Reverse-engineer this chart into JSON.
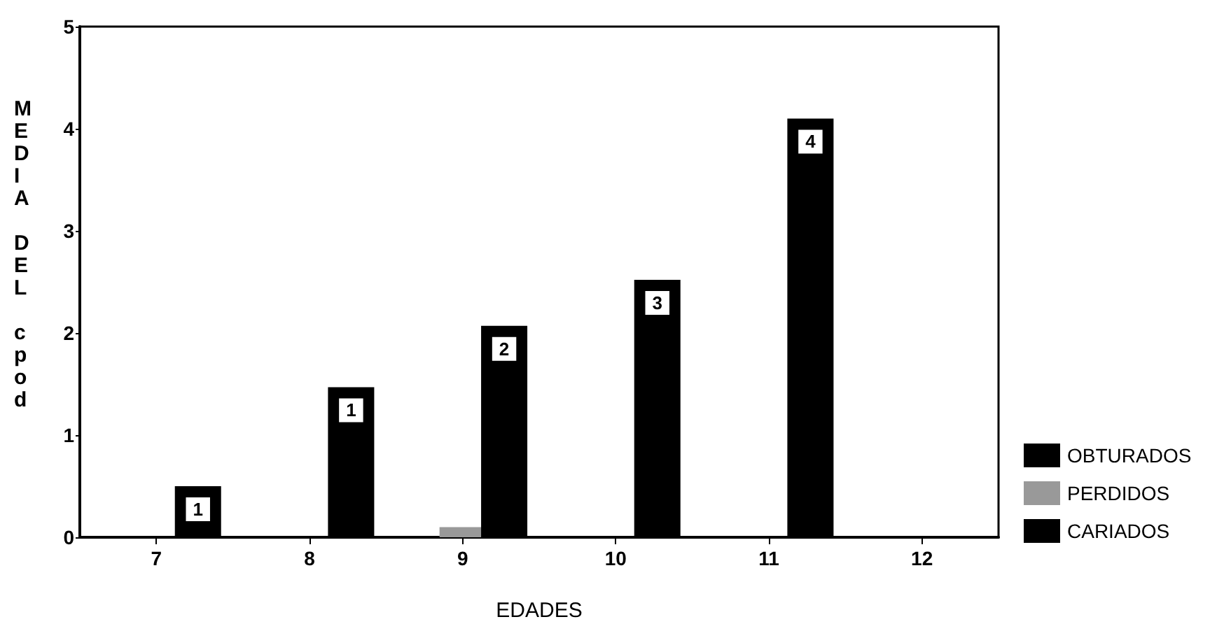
{
  "chart_data": {
    "type": "bar",
    "xlabel": "EDADES",
    "ylabel": "MEDIA DEL cpod",
    "categories": [
      "7",
      "8",
      "9",
      "10",
      "11",
      "12"
    ],
    "series": [
      {
        "name": "OBTURADOS",
        "color": "#000000",
        "values": [
          0,
          0,
          0,
          0,
          0,
          0
        ]
      },
      {
        "name": "PERDIDOS",
        "color": "#999999",
        "values": [
          0,
          0,
          0.1,
          0,
          0,
          0
        ]
      },
      {
        "name": "CARIADOS",
        "color": "#000000",
        "values": [
          0.5,
          1.47,
          2.07,
          2.52,
          4.1,
          0
        ],
        "value_labels": [
          "1",
          "1",
          "2",
          "3",
          "4",
          null
        ]
      }
    ],
    "ylim": [
      0,
      5
    ],
    "yticks": [
      0,
      1,
      2,
      3,
      4,
      5
    ],
    "grid": false,
    "legend": "right"
  }
}
